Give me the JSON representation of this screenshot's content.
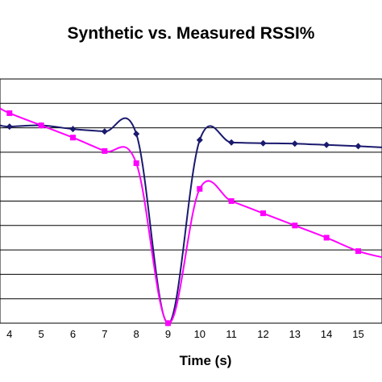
{
  "chart_data": {
    "type": "line",
    "title": "Synthetic vs. Measured RSSI%",
    "xlabel": "Time (s)",
    "ylabel": "",
    "x_tick_labels": [
      "4",
      "5",
      "6",
      "7",
      "8",
      "9",
      "10",
      "11",
      "12",
      "13",
      "14",
      "15"
    ],
    "xlim": [
      3.7,
      15.75
    ],
    "ylim": [
      0,
      100
    ],
    "y_gridlines": [
      10,
      20,
      30,
      40,
      50,
      60,
      70,
      80,
      90
    ],
    "grid": "horizontal",
    "legend": "none",
    "series": [
      {
        "color": "#1a1a6e",
        "marker": "diamond",
        "x": [
          3.7,
          4,
          5,
          6,
          7,
          8,
          9,
          10,
          11,
          12,
          13,
          14,
          15,
          15.75
        ],
        "y": [
          81,
          80.5,
          81,
          79.5,
          78.5,
          77.5,
          0,
          75,
          74,
          73.7,
          73.5,
          73,
          72.5,
          72
        ]
      },
      {
        "color": "#ff00ff",
        "marker": "square",
        "x": [
          3.7,
          4,
          5,
          6,
          7,
          8,
          9,
          10,
          11,
          12,
          13,
          14,
          15,
          15.75
        ],
        "y": [
          88,
          86,
          81,
          76,
          70.5,
          65.5,
          0,
          55,
          50,
          45,
          40,
          35,
          29.5,
          27
        ]
      }
    ]
  }
}
